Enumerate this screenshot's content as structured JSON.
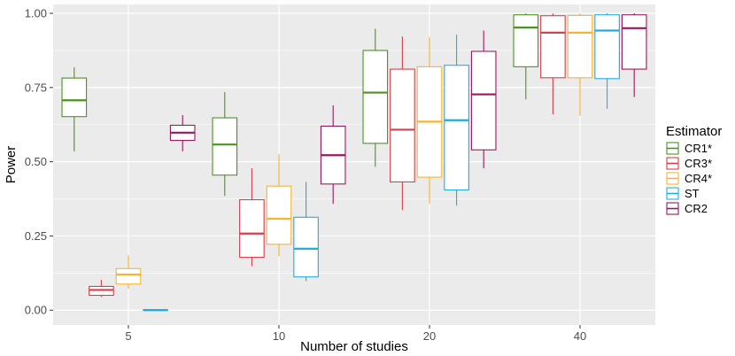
{
  "chart_data": {
    "type": "boxplot",
    "title": "",
    "xlabel": "Number of studies",
    "ylabel": "Power",
    "categories": [
      "5",
      "10",
      "20",
      "40"
    ],
    "ylim": [
      -0.05,
      1.03
    ],
    "yticks": [
      0,
      0.25,
      0.5,
      0.75,
      1.0
    ],
    "ytick_labels": [
      "0.00",
      "0.25",
      "0.50",
      "0.75",
      "1.00"
    ],
    "grid": true,
    "legend": {
      "title": "Estimator",
      "position": "right",
      "entries": [
        "CR1*",
        "CR3*",
        "CR4*",
        "ST",
        "CR2"
      ]
    },
    "series": [
      {
        "name": "CR1*",
        "color": "#4d9221",
        "boxes": [
          {
            "category": "5",
            "min": 0.535,
            "q1": 0.652,
            "median": 0.707,
            "q3": 0.782,
            "max": 0.818
          },
          {
            "category": "10",
            "min": 0.385,
            "q1": 0.455,
            "median": 0.558,
            "q3": 0.648,
            "max": 0.735
          },
          {
            "category": "20",
            "min": 0.483,
            "q1": 0.562,
            "median": 0.733,
            "q3": 0.875,
            "max": 0.948
          },
          {
            "category": "40",
            "min": 0.71,
            "q1": 0.82,
            "median": 0.952,
            "q3": 0.995,
            "max": 1.0
          }
        ]
      },
      {
        "name": "CR3*",
        "color": "#d6404e",
        "boxes": [
          {
            "category": "5",
            "min": 0.045,
            "q1": 0.05,
            "median": 0.068,
            "q3": 0.08,
            "max": 0.102
          },
          {
            "category": "10",
            "min": 0.148,
            "q1": 0.178,
            "median": 0.258,
            "q3": 0.372,
            "max": 0.478
          },
          {
            "category": "20",
            "min": 0.338,
            "q1": 0.432,
            "median": 0.608,
            "q3": 0.812,
            "max": 0.922
          },
          {
            "category": "40",
            "min": 0.66,
            "q1": 0.783,
            "median": 0.935,
            "q3": 0.992,
            "max": 1.0
          }
        ]
      },
      {
        "name": "CR4*",
        "color": "#f5b530",
        "boxes": [
          {
            "category": "5",
            "min": 0.072,
            "q1": 0.088,
            "median": 0.12,
            "q3": 0.14,
            "max": 0.185
          },
          {
            "category": "10",
            "min": 0.182,
            "q1": 0.222,
            "median": 0.308,
            "q3": 0.418,
            "max": 0.525
          },
          {
            "category": "20",
            "min": 0.358,
            "q1": 0.448,
            "median": 0.635,
            "q3": 0.82,
            "max": 0.92
          },
          {
            "category": "40",
            "min": 0.655,
            "q1": 0.783,
            "median": 0.935,
            "q3": 0.993,
            "max": 1.0
          }
        ]
      },
      {
        "name": "ST",
        "color": "#1eaee0",
        "boxes": [
          {
            "category": "5",
            "min": 0.0,
            "q1": 0.0,
            "median": 0.0,
            "q3": 0.002,
            "max": 0.002
          },
          {
            "category": "10",
            "min": 0.098,
            "q1": 0.112,
            "median": 0.207,
            "q3": 0.313,
            "max": 0.432
          },
          {
            "category": "20",
            "min": 0.352,
            "q1": 0.405,
            "median": 0.64,
            "q3": 0.825,
            "max": 0.928
          },
          {
            "category": "40",
            "min": 0.678,
            "q1": 0.78,
            "median": 0.942,
            "q3": 0.995,
            "max": 1.0
          }
        ]
      },
      {
        "name": "CR2",
        "color": "#98195e",
        "boxes": [
          {
            "category": "5",
            "min": 0.535,
            "q1": 0.572,
            "median": 0.598,
            "q3": 0.623,
            "max": 0.657
          },
          {
            "category": "10",
            "min": 0.358,
            "q1": 0.425,
            "median": 0.522,
            "q3": 0.62,
            "max": 0.69
          },
          {
            "category": "20",
            "min": 0.478,
            "q1": 0.54,
            "median": 0.727,
            "q3": 0.872,
            "max": 0.942
          },
          {
            "category": "40",
            "min": 0.718,
            "q1": 0.812,
            "median": 0.95,
            "q3": 0.995,
            "max": 1.0
          }
        ]
      }
    ]
  }
}
